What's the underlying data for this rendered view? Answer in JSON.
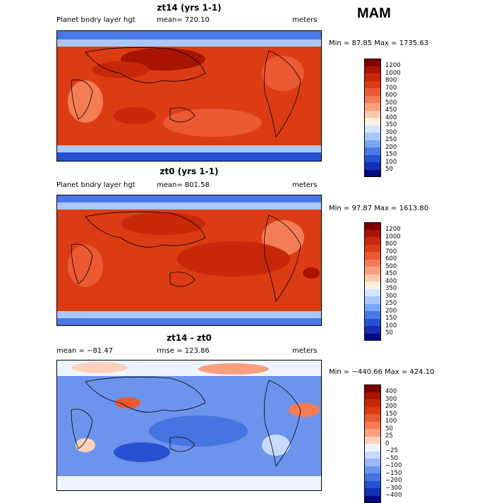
{
  "season": "MAM",
  "panels": [
    {
      "title": "zt14 (yrs 1-1)",
      "left_label": "Planet bndry layer hgt",
      "mid_label": "mean= 720.10",
      "units": "meters",
      "minmax": "Min =   87.85 Max = 1735.63",
      "colorbar": {
        "labels": [
          "1200",
          "1000",
          "800",
          "700",
          "600",
          "500",
          "450",
          "400",
          "350",
          "300",
          "250",
          "200",
          "150",
          "100",
          "50"
        ],
        "colors": [
          "#7f0000",
          "#a81400",
          "#c8280a",
          "#dc3c14",
          "#eb5a32",
          "#f57d55",
          "#fa9f7d",
          "#fcc8a8",
          "#fff0e0",
          "#d2e6ff",
          "#aac8ff",
          "#7aa5f5",
          "#4b78e6",
          "#2850d2",
          "#1430b4",
          "#000a82"
        ]
      }
    },
    {
      "title": "zt0 (yrs 1-1)",
      "left_label": "Planet bndry layer hgt",
      "mid_label": "mean= 801.58",
      "units": "meters",
      "minmax": "Min =   97.87 Max = 1613.80",
      "colorbar": {
        "labels": [
          "1200",
          "1000",
          "800",
          "700",
          "600",
          "500",
          "450",
          "400",
          "350",
          "300",
          "250",
          "200",
          "150",
          "100",
          "50"
        ],
        "colors": [
          "#7f0000",
          "#a81400",
          "#c8280a",
          "#dc3c14",
          "#eb5a32",
          "#f57d55",
          "#fa9f7d",
          "#fcc8a8",
          "#fff0e0",
          "#d2e6ff",
          "#aac8ff",
          "#7aa5f5",
          "#4b78e6",
          "#2850d2",
          "#1430b4",
          "#000a82"
        ]
      }
    },
    {
      "title": "zt14 - zt0",
      "left_label": "mean = −81.47",
      "mid_label": "rmse = 123.86",
      "units": "meters",
      "minmax": "Min = −440.66 Max = 424.10",
      "colorbar": {
        "labels": [
          "400",
          "300",
          "200",
          "150",
          "100",
          "50",
          "25",
          "0",
          "−25",
          "−50",
          "−100",
          "−150",
          "−200",
          "−300",
          "−400"
        ],
        "colors": [
          "#7f0000",
          "#a81400",
          "#c8280a",
          "#dc3c14",
          "#eb5a32",
          "#f57d55",
          "#fa9f7d",
          "#fcd2bc",
          "#eef4ff",
          "#c8daff",
          "#9ab8f5",
          "#6c94ec",
          "#4674e0",
          "#2850d2",
          "#1430b4",
          "#000a82"
        ]
      }
    }
  ]
}
